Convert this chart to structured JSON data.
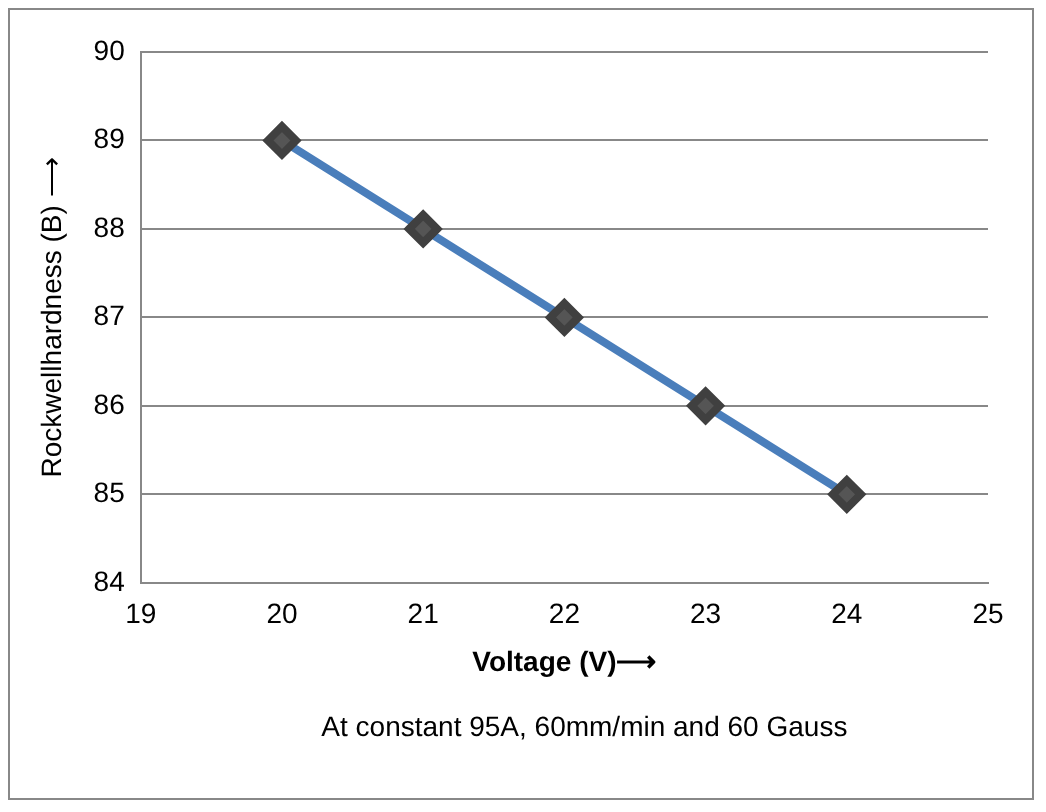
{
  "chart_data": {
    "type": "line",
    "xlabel": "Voltage (V)⟶",
    "ylabel": "Rockwellhardness (B) ⟶",
    "x": [
      20,
      21,
      22,
      23,
      24
    ],
    "series": [
      {
        "color": "#4a7ebb",
        "values": [
          89,
          88,
          87,
          86,
          85
        ]
      }
    ],
    "xlim": [
      19,
      25
    ],
    "xticks": [
      19,
      20,
      21,
      22,
      23,
      24,
      25
    ],
    "ylim": [
      84,
      90
    ],
    "yticks": [
      84,
      85,
      86,
      87,
      88,
      89,
      90
    ],
    "grid": "y",
    "legend": false,
    "marker": "diamond",
    "line_style": "solid",
    "annotations": [
      "At constant 95A, 60mm/min and 60 Gauss"
    ]
  }
}
